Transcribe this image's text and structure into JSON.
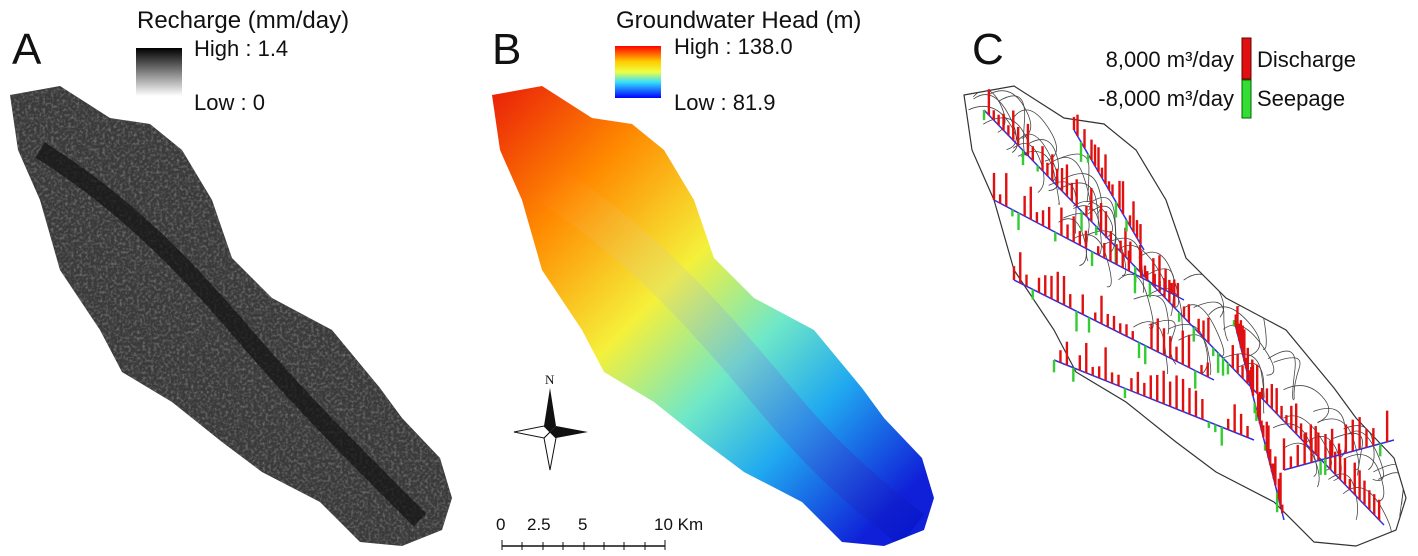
{
  "panels": [
    {
      "label": "A",
      "legend": {
        "title": "Recharge (mm/day)",
        "high": "High : 1.4",
        "low": "Low : 0"
      }
    },
    {
      "label": "B",
      "legend": {
        "title": "Groundwater Head (m)",
        "high": "High : 138.0",
        "low": "Low : 81.9"
      },
      "north": "N",
      "scale_bar": [
        "0",
        "2.5",
        "5",
        "10 Km"
      ]
    },
    {
      "label": "C",
      "legend": {
        "items": [
          {
            "amount": "8,000 m³/day",
            "name": "Discharge"
          },
          {
            "amount": "-8,000 m³/day",
            "name": "Seepage"
          }
        ]
      }
    }
  ]
}
